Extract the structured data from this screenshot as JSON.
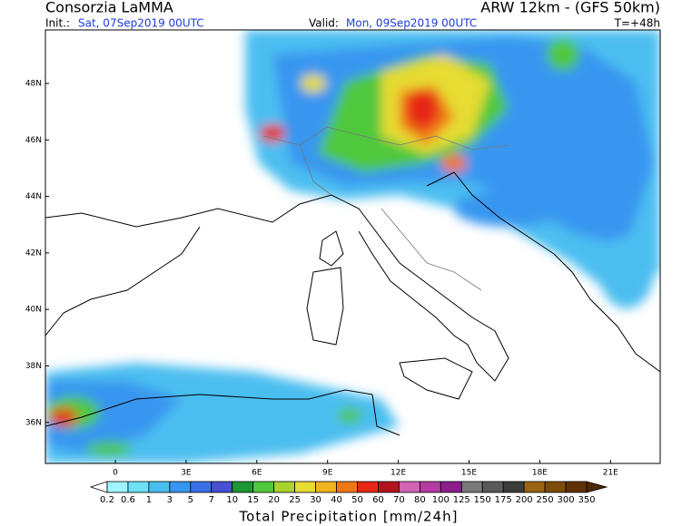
{
  "header": {
    "title": "Consorzia LaMMA",
    "model": "ARW 12km - (GFS 50km)",
    "init_label": "Init.:",
    "init": "Sat, 07Sep2019 00UTC",
    "valid_label": "Valid:",
    "valid": "Mon, 09Sep2019 00UTC",
    "step": "T=+48h"
  },
  "map": {
    "lat_labels": [
      "48N",
      "46N",
      "44N",
      "42N",
      "40N",
      "38N",
      "36N"
    ],
    "lon_labels": [
      "0",
      "3E",
      "6E",
      "9E",
      "12E",
      "15E",
      "18E",
      "21E"
    ]
  },
  "legend": {
    "levels": [
      "0.2",
      "0.6",
      "1",
      "3",
      "5",
      "7",
      "10",
      "15",
      "20",
      "25",
      "30",
      "40",
      "50",
      "60",
      "70",
      "80",
      "100",
      "125",
      "150",
      "175",
      "200",
      "250",
      "300",
      "350"
    ],
    "colors": [
      "#ffffff",
      "#9ff5ff",
      "#6ee1f5",
      "#4bbef0",
      "#3796f0",
      "#3c6ee6",
      "#4650d2",
      "#1e9632",
      "#50c83c",
      "#aad22d",
      "#e6dc32",
      "#f0b41e",
      "#f07814",
      "#e62814",
      "#b4141e",
      "#d264b4",
      "#b43ca0",
      "#8c1e8c",
      "#787878",
      "#5a5a5a",
      "#3c3c3c",
      "#9b6414",
      "#7d4b0a",
      "#5f3205",
      "#4b2800"
    ],
    "title": "Total Precipitation [mm/24h]"
  }
}
